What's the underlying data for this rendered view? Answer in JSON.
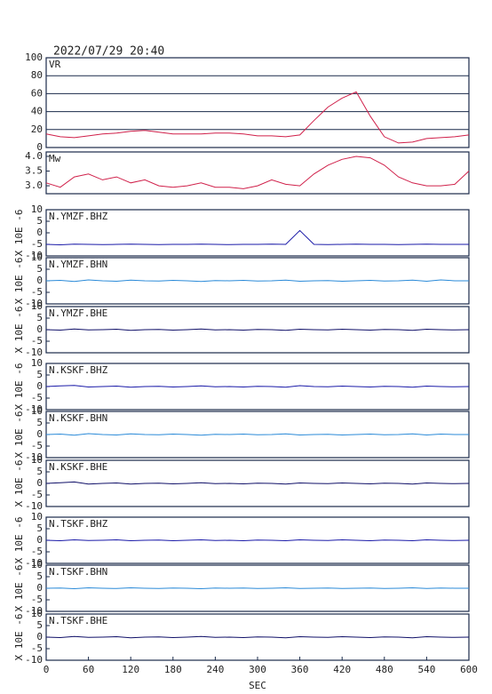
{
  "chart_data": [
    {
      "type": "line",
      "title": "2022/07/29 20:40",
      "x": [
        0,
        20,
        40,
        60,
        80,
        100,
        120,
        140,
        160,
        180,
        200,
        220,
        240,
        260,
        280,
        300,
        320,
        340,
        360,
        380,
        400,
        420,
        440,
        460,
        480,
        500,
        520,
        540,
        560,
        580,
        600
      ],
      "xlim": [
        0,
        600
      ],
      "ylim": [
        0,
        100
      ],
      "yticks": [
        0,
        20,
        40,
        60,
        80,
        100
      ],
      "grid": true,
      "series": [
        {
          "name": "VR",
          "color": "#d0204a",
          "values": [
            15,
            12,
            11,
            13,
            15,
            16,
            18,
            19,
            17,
            15,
            15,
            15,
            16,
            16,
            15,
            13,
            13,
            12,
            14,
            30,
            45,
            55,
            62,
            35,
            12,
            5,
            6,
            10,
            11,
            12,
            14
          ]
        }
      ]
    },
    {
      "type": "line",
      "x": [
        0,
        20,
        40,
        60,
        80,
        100,
        120,
        140,
        160,
        180,
        200,
        220,
        240,
        260,
        280,
        300,
        320,
        340,
        360,
        380,
        400,
        420,
        440,
        460,
        480,
        500,
        520,
        540,
        560,
        580,
        600
      ],
      "xlim": [
        0,
        600
      ],
      "ylim": [
        2.73,
        4.15
      ],
      "yticks": [
        {
          "value": 3,
          "label": "3.0"
        },
        3.5,
        {
          "value": 4,
          "label": "4.0"
        }
      ],
      "grid": false,
      "series": [
        {
          "name": "Mw",
          "color": "#d0204a",
          "values": [
            3.1,
            2.95,
            3.3,
            3.4,
            3.2,
            3.3,
            3.1,
            3.2,
            3.0,
            2.95,
            3.0,
            3.1,
            2.95,
            2.95,
            2.9,
            3.0,
            3.2,
            3.05,
            3.0,
            3.4,
            3.7,
            3.9,
            4.0,
            3.95,
            3.7,
            3.3,
            3.1,
            3.0,
            3.0,
            3.05,
            3.5
          ]
        }
      ]
    },
    {
      "type": "line",
      "ylabel": "X 10E -6",
      "x": [
        0,
        20,
        40,
        60,
        80,
        100,
        120,
        140,
        160,
        180,
        200,
        220,
        240,
        260,
        280,
        300,
        320,
        340,
        360,
        380,
        400,
        420,
        440,
        460,
        480,
        500,
        520,
        540,
        560,
        580,
        600
      ],
      "xlim": [
        0,
        600
      ],
      "ylim": [
        -10,
        10
      ],
      "yticks": [
        -10,
        -5,
        0,
        5,
        10
      ],
      "grid": false,
      "series": [
        {
          "name": "N.YMZF.BHZ",
          "color": "#1a1aa8",
          "values": [
            -5,
            -5.2,
            -4.9,
            -5,
            -5.1,
            -5,
            -4.9,
            -5,
            -5.1,
            -5,
            -5,
            -4.9,
            -5,
            -5.1,
            -5,
            -5,
            -4.9,
            -5,
            1,
            -5,
            -5.1,
            -5,
            -4.9,
            -5,
            -5,
            -5.1,
            -5,
            -4.9,
            -5,
            -5,
            -5
          ]
        }
      ]
    },
    {
      "type": "line",
      "ylabel": "X 10E -6",
      "x": [
        0,
        20,
        40,
        60,
        80,
        100,
        120,
        140,
        160,
        180,
        200,
        220,
        240,
        260,
        280,
        300,
        320,
        340,
        360,
        380,
        400,
        420,
        440,
        460,
        480,
        500,
        520,
        540,
        560,
        580,
        600
      ],
      "xlim": [
        0,
        600
      ],
      "ylim": [
        -10,
        10
      ],
      "yticks": [
        -10,
        -5,
        0,
        5,
        10
      ],
      "grid": false,
      "series": [
        {
          "name": "N.YMZF.BHN",
          "color": "#2a8ad8",
          "values": [
            0,
            0.2,
            -0.3,
            0.4,
            0,
            -0.2,
            0.3,
            0,
            -0.1,
            0.2,
            0,
            -0.3,
            0.1,
            0,
            0.2,
            -0.1,
            0,
            0.3,
            -0.2,
            0,
            0.1,
            -0.2,
            0,
            0.2,
            -0.1,
            0,
            0.3,
            -0.2,
            0.4,
            0,
            0
          ]
        }
      ]
    },
    {
      "type": "line",
      "ylabel": "X 10E -6",
      "x": [
        0,
        20,
        40,
        60,
        80,
        100,
        120,
        140,
        160,
        180,
        200,
        220,
        240,
        260,
        280,
        300,
        320,
        340,
        360,
        380,
        400,
        420,
        440,
        460,
        480,
        500,
        520,
        540,
        560,
        580,
        600
      ],
      "xlim": [
        0,
        600
      ],
      "ylim": [
        -10,
        10
      ],
      "yticks": [
        -10,
        -5,
        0,
        5,
        10
      ],
      "grid": false,
      "series": [
        {
          "name": "N.YMZF.BHE",
          "color": "#101068",
          "values": [
            0,
            -0.2,
            0.3,
            -0.1,
            0,
            0.2,
            -0.3,
            0,
            0.1,
            -0.2,
            0,
            0.3,
            -0.1,
            0,
            -0.2,
            0.1,
            0,
            -0.3,
            0.2,
            0,
            -0.1,
            0.2,
            0,
            -0.2,
            0.1,
            0,
            -0.3,
            0.2,
            0,
            -0.1,
            0
          ]
        }
      ]
    },
    {
      "type": "line",
      "ylabel": "X 10E -6",
      "x": [
        0,
        20,
        40,
        60,
        80,
        100,
        120,
        140,
        160,
        180,
        200,
        220,
        240,
        260,
        280,
        300,
        320,
        340,
        360,
        380,
        400,
        420,
        440,
        460,
        480,
        500,
        520,
        540,
        560,
        580,
        600
      ],
      "xlim": [
        0,
        600
      ],
      "ylim": [
        -10,
        10
      ],
      "yticks": [
        -10,
        -5,
        0,
        5,
        10
      ],
      "grid": false,
      "series": [
        {
          "name": "N.KSKF.BHZ",
          "color": "#1a1aa8",
          "values": [
            0,
            0.3,
            0.5,
            -0.2,
            0,
            0.2,
            -0.3,
            0,
            0.1,
            -0.2,
            0,
            0.3,
            -0.1,
            0,
            -0.2,
            0.1,
            0,
            -0.3,
            0.4,
            0,
            -0.1,
            0.2,
            0,
            -0.2,
            0.1,
            0,
            -0.3,
            0.2,
            0,
            -0.1,
            0
          ]
        }
      ]
    },
    {
      "type": "line",
      "ylabel": "X 10E -6",
      "x": [
        0,
        20,
        40,
        60,
        80,
        100,
        120,
        140,
        160,
        180,
        200,
        220,
        240,
        260,
        280,
        300,
        320,
        340,
        360,
        380,
        400,
        420,
        440,
        460,
        480,
        500,
        520,
        540,
        560,
        580,
        600
      ],
      "xlim": [
        0,
        600
      ],
      "ylim": [
        -10,
        10
      ],
      "yticks": [
        -10,
        -5,
        0,
        5,
        10
      ],
      "grid": false,
      "series": [
        {
          "name": "N.KSKF.BHN",
          "color": "#2a8ad8",
          "values": [
            0,
            0.2,
            -0.3,
            0.4,
            0,
            -0.2,
            0.3,
            0,
            -0.1,
            0.2,
            0,
            -0.3,
            0.1,
            0,
            0.2,
            -0.1,
            0,
            0.3,
            -0.2,
            0,
            0.1,
            -0.2,
            0,
            0.2,
            -0.1,
            0,
            0.3,
            -0.2,
            0.2,
            0,
            0
          ]
        }
      ]
    },
    {
      "type": "line",
      "ylabel": "X 10E -6",
      "x": [
        0,
        20,
        40,
        60,
        80,
        100,
        120,
        140,
        160,
        180,
        200,
        220,
        240,
        260,
        280,
        300,
        320,
        340,
        360,
        380,
        400,
        420,
        440,
        460,
        480,
        500,
        520,
        540,
        560,
        580,
        600
      ],
      "xlim": [
        0,
        600
      ],
      "ylim": [
        -10,
        10
      ],
      "yticks": [
        -10,
        -5,
        0,
        5,
        10
      ],
      "grid": false,
      "series": [
        {
          "name": "N.KSKF.BHE",
          "color": "#101068",
          "values": [
            0,
            0.3,
            0.6,
            -0.3,
            0,
            0.2,
            -0.3,
            0,
            0.1,
            -0.2,
            0,
            0.3,
            -0.1,
            0,
            -0.2,
            0.1,
            0,
            -0.3,
            0.2,
            0,
            -0.1,
            0.2,
            0,
            -0.2,
            0.1,
            0,
            -0.3,
            0.2,
            0,
            -0.1,
            0
          ]
        }
      ]
    },
    {
      "type": "line",
      "ylabel": "X 10E -6",
      "x": [
        0,
        20,
        40,
        60,
        80,
        100,
        120,
        140,
        160,
        180,
        200,
        220,
        240,
        260,
        280,
        300,
        320,
        340,
        360,
        380,
        400,
        420,
        440,
        460,
        480,
        500,
        520,
        540,
        560,
        580,
        600
      ],
      "xlim": [
        0,
        600
      ],
      "ylim": [
        -10,
        10
      ],
      "yticks": [
        -10,
        -5,
        0,
        5,
        10
      ],
      "grid": false,
      "series": [
        {
          "name": "N.TSKF.BHZ",
          "color": "#1a1aa8",
          "values": [
            0,
            -0.2,
            0.2,
            -0.1,
            0,
            0.2,
            -0.2,
            0,
            0.1,
            -0.2,
            0,
            0.2,
            -0.1,
            0,
            -0.2,
            0.1,
            0,
            -0.2,
            0.2,
            0,
            -0.1,
            0.2,
            0,
            -0.2,
            0.1,
            0,
            -0.2,
            0.2,
            0,
            -0.1,
            0
          ]
        }
      ]
    },
    {
      "type": "line",
      "ylabel": "X 10E -6",
      "x": [
        0,
        20,
        40,
        60,
        80,
        100,
        120,
        140,
        160,
        180,
        200,
        220,
        240,
        260,
        280,
        300,
        320,
        340,
        360,
        380,
        400,
        420,
        440,
        460,
        480,
        500,
        520,
        540,
        560,
        580,
        600
      ],
      "xlim": [
        0,
        600
      ],
      "ylim": [
        -10,
        10
      ],
      "yticks": [
        -10,
        -5,
        0,
        5,
        10
      ],
      "grid": false,
      "series": [
        {
          "name": "N.TSKF.BHN",
          "color": "#2a8ad8",
          "values": [
            0,
            0.1,
            -0.2,
            0.2,
            0,
            -0.1,
            0.2,
            0,
            -0.1,
            0.1,
            0,
            -0.2,
            0.1,
            0,
            0.1,
            -0.1,
            0,
            0.2,
            -0.1,
            0,
            0.1,
            -0.1,
            0,
            0.1,
            -0.1,
            0,
            0.2,
            -0.1,
            0.1,
            0,
            0
          ]
        }
      ]
    },
    {
      "type": "line",
      "ylabel": "X 10E -6",
      "xlabel": "SEC",
      "x": [
        0,
        20,
        40,
        60,
        80,
        100,
        120,
        140,
        160,
        180,
        200,
        220,
        240,
        260,
        280,
        300,
        320,
        340,
        360,
        380,
        400,
        420,
        440,
        460,
        480,
        500,
        520,
        540,
        560,
        580,
        600
      ],
      "xlim": [
        0,
        600
      ],
      "xticks": [
        0,
        60,
        120,
        180,
        240,
        300,
        360,
        420,
        480,
        540,
        600
      ],
      "ylim": [
        -10,
        10
      ],
      "yticks": [
        -10,
        -5,
        0,
        5,
        10
      ],
      "grid": false,
      "series": [
        {
          "name": "N.TSKF.BHE",
          "color": "#101068",
          "values": [
            0,
            -0.2,
            0.3,
            -0.1,
            0,
            0.2,
            -0.3,
            0,
            0.1,
            -0.2,
            0,
            0.3,
            -0.1,
            0,
            -0.2,
            0.1,
            0,
            -0.3,
            0.2,
            0,
            -0.1,
            0.2,
            0,
            -0.2,
            0.1,
            0,
            -0.3,
            0.2,
            0,
            -0.1,
            0
          ]
        }
      ]
    }
  ]
}
